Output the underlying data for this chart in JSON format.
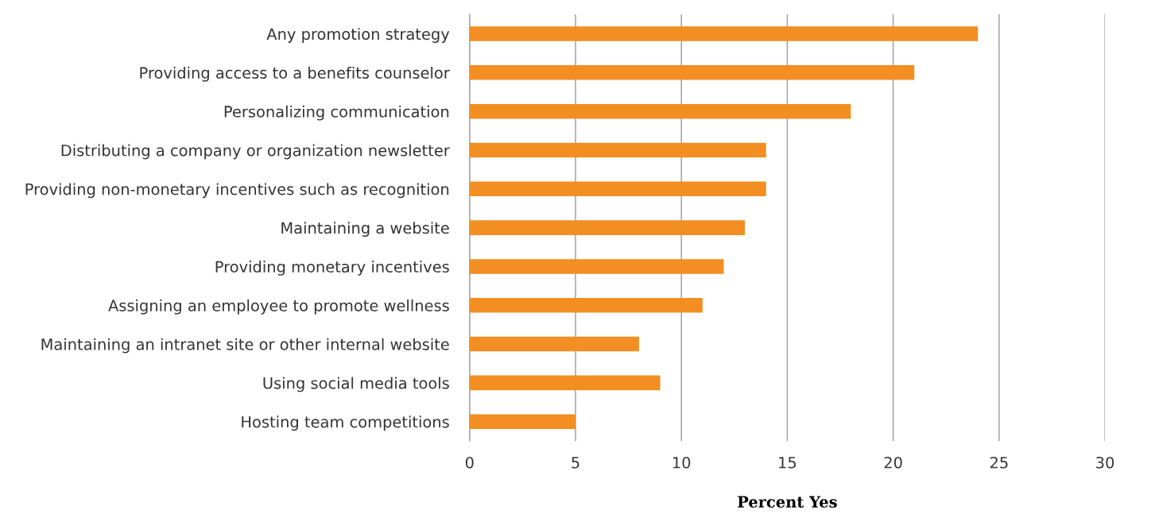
{
  "chart_data": {
    "type": "bar",
    "orientation": "horizontal",
    "xlabel": "Percent Yes",
    "categories": [
      "Any promotion strategy",
      "Providing access to a benefits counselor",
      "Personalizing communication",
      "Distributing a company or organization newsletter",
      "Providing non-monetary incentives such as recognition",
      "Maintaining a website",
      "Providing monetary incentives",
      "Assigning an employee to promote wellness",
      "Maintaining an intranet site or other internal website",
      "Using social media tools",
      "Hosting team competitions"
    ],
    "values": [
      24,
      21,
      18,
      14,
      14,
      13,
      12,
      11,
      8,
      9,
      5
    ],
    "color": "#f28e22",
    "xlim": [
      0,
      30
    ],
    "xticks": [
      0,
      5,
      10,
      15,
      20,
      25,
      30
    ],
    "grid": "x"
  }
}
